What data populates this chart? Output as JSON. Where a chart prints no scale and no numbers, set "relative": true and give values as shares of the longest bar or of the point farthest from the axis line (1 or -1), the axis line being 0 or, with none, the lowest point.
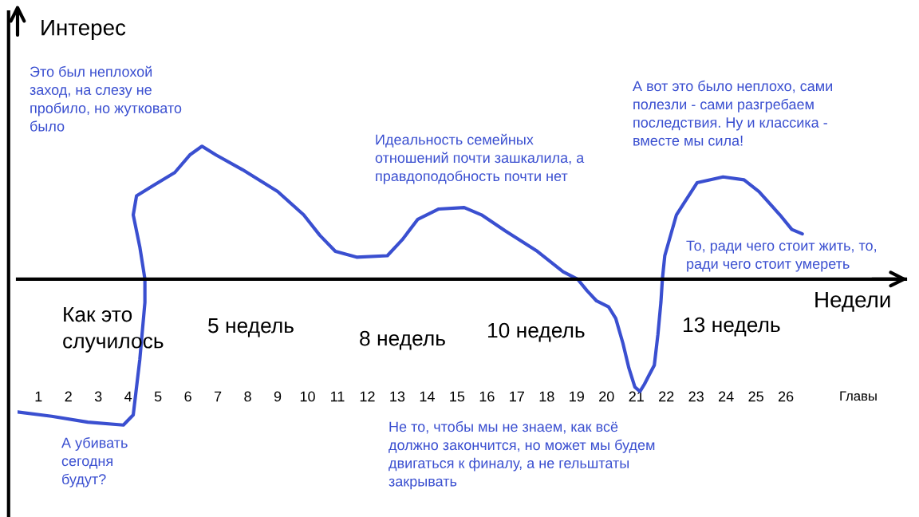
{
  "chart_data": {
    "type": "line",
    "relative": true,
    "xlabel": "Недели",
    "ylabel": "Интерес",
    "xlim": [
      0.3,
      30
    ],
    "xticks": [
      1,
      2,
      3,
      4,
      5,
      6,
      7,
      8,
      9,
      10,
      11,
      12,
      13,
      14,
      15,
      16,
      17,
      18,
      19,
      20,
      21,
      22,
      23,
      24,
      25,
      26
    ],
    "series": [
      {
        "color": "#3a4fd0",
        "x": [
          0.3,
          1.44,
          2.65,
          3.84,
          4.17,
          4.39,
          4.56,
          4.56,
          4.39,
          4.17,
          4.28,
          4.83,
          5.56,
          6.06,
          6.47,
          6.94,
          7.82,
          9.0,
          9.87,
          10.41,
          10.93,
          11.64,
          12.67,
          13.17,
          13.69,
          14.39,
          15.24,
          15.82,
          16.62,
          17.69,
          18.55,
          19.03,
          19.35,
          19.67,
          20.07,
          20.31,
          20.55,
          20.75,
          20.95,
          21.12,
          21.27,
          21.42,
          21.6,
          21.72,
          21.82,
          21.87,
          21.95,
          22.34,
          23.03,
          23.9,
          24.6,
          25.1,
          25.8,
          26.2,
          26.55
        ],
        "values": [
          -0.91,
          -0.94,
          -0.98,
          -1,
          -0.93,
          -0.55,
          -0.16,
          0,
          0.22,
          0.44,
          0.57,
          0.64,
          0.73,
          0.85,
          0.91,
          0.85,
          0.75,
          0.6,
          0.44,
          0.3,
          0.19,
          0.15,
          0.16,
          0.27,
          0.41,
          0.48,
          0.49,
          0.44,
          0.33,
          0.19,
          0.05,
          0,
          -0.08,
          -0.15,
          -0.19,
          -0.27,
          -0.44,
          -0.61,
          -0.74,
          -0.77,
          -0.72,
          -0.66,
          -0.59,
          -0.38,
          -0.16,
          0,
          0.16,
          0.44,
          0.66,
          0.7,
          0.68,
          0.6,
          0.44,
          0.34,
          0.31
        ]
      }
    ],
    "annotations": [
      "Это был неплохой\nзаход, на слезу не\nпробило, но жутковато\nбыло",
      "Идеальность семейных\nотношений почти зашкалила, а\nправдоподобность почти нет",
      "А вот это было неплохо, сами\nполезли - сами разгребаем\nпоследствия. Ну и классика -\nвместе мы сила!",
      "То, ради чего стоит жить, то,\nради чего стоит умереть",
      "А убивать\nсегодня\nбудут?",
      "Не то, чтобы мы не знаем, как всё\nдолжно закончится, но может мы будем\nдвигаться к финалу, а не гельштаты\nзакрывать",
      "Как это\nслучилось",
      "5 недель",
      "8 недель",
      "10 недель",
      "13 недель",
      "Главы"
    ]
  }
}
